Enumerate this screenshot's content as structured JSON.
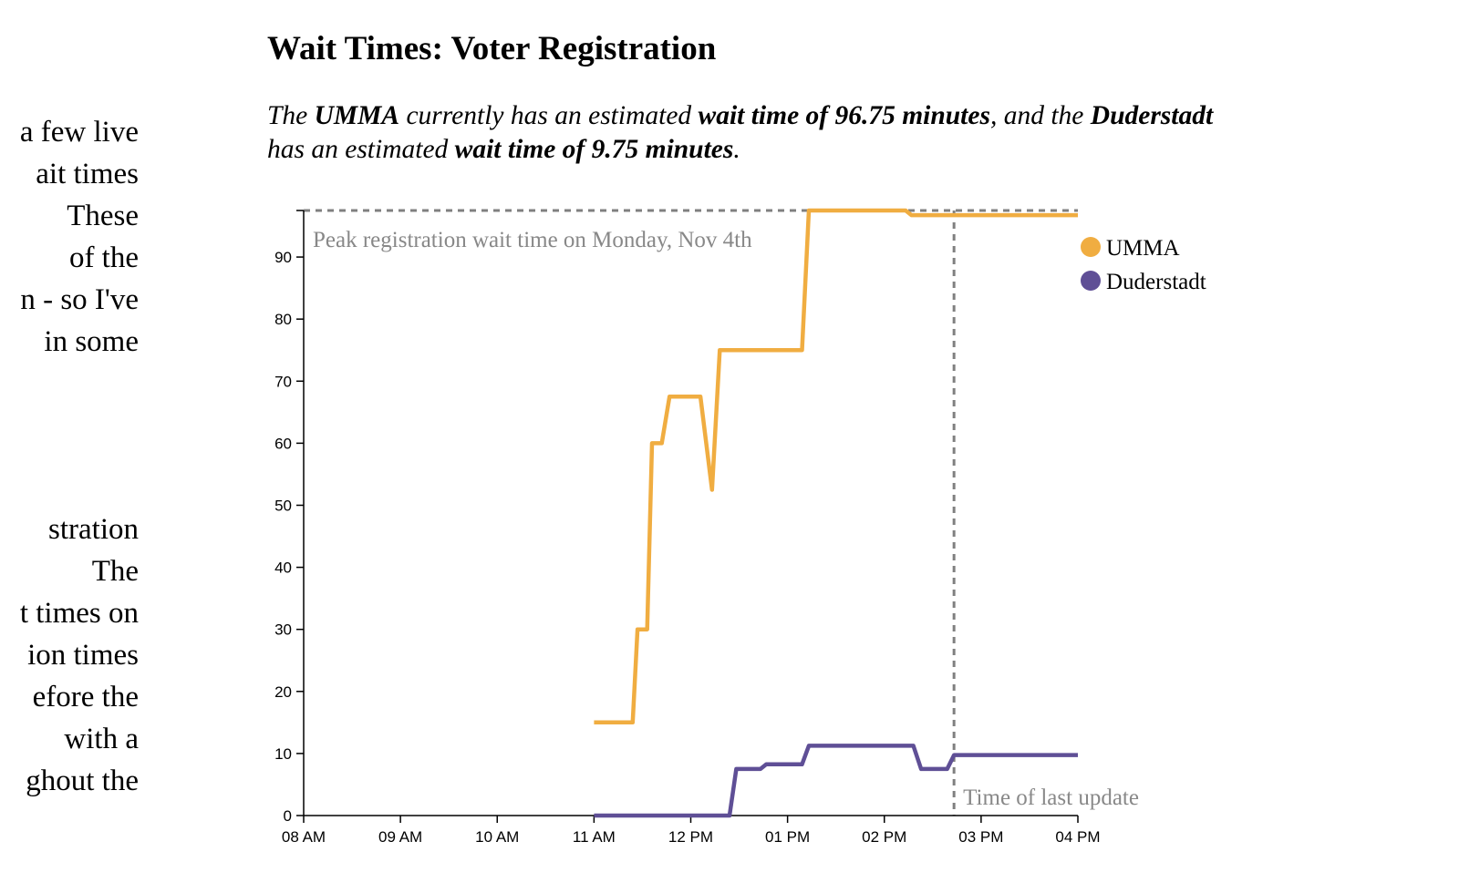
{
  "paragraphs": [
    [
      "a few live",
      "ait times",
      "These",
      "of the",
      "n - so I've",
      "in some"
    ],
    [
      "stration",
      "The",
      "t times on",
      "ion times",
      "efore the",
      " with a",
      "ghout the"
    ]
  ],
  "subtitle": {
    "parts": [
      {
        "text": "The ",
        "bold": false
      },
      {
        "text": "UMMA",
        "bold": true
      },
      {
        "text": " currently has an estimated ",
        "bold": false
      },
      {
        "text": "wait time of 96.75 minutes",
        "bold": true
      },
      {
        "text": ", and the ",
        "bold": false
      },
      {
        "text": "Duderstadt",
        "bold": true
      },
      {
        "text": " has an estimated ",
        "bold": false
      },
      {
        "text": "wait time of 9.75 minutes",
        "bold": true
      },
      {
        "text": ".",
        "bold": false
      }
    ]
  },
  "chart_data": {
    "type": "line",
    "title": "Wait Times: Voter Registration",
    "xlabel": "",
    "ylabel": "",
    "x_domain": [
      8,
      16
    ],
    "x_ticks": [
      {
        "x": 8,
        "label": "08 AM"
      },
      {
        "x": 9,
        "label": "09 AM"
      },
      {
        "x": 10,
        "label": "10 AM"
      },
      {
        "x": 11,
        "label": "11 AM"
      },
      {
        "x": 12,
        "label": "12 PM"
      },
      {
        "x": 13,
        "label": "01 PM"
      },
      {
        "x": 14,
        "label": "02 PM"
      },
      {
        "x": 15,
        "label": "03 PM"
      },
      {
        "x": 16,
        "label": "04 PM"
      }
    ],
    "ylim": [
      0,
      97.5
    ],
    "y_ticks": [
      0,
      10,
      20,
      30,
      40,
      50,
      60,
      70,
      80,
      90
    ],
    "grid": false,
    "legend_position": "top-right",
    "series": [
      {
        "name": "UMMA",
        "color": "#f0ad41",
        "points": [
          [
            11.0,
            15
          ],
          [
            11.4,
            15
          ],
          [
            11.45,
            30
          ],
          [
            11.55,
            30
          ],
          [
            11.6,
            60
          ],
          [
            11.7,
            60
          ],
          [
            11.78,
            67.5
          ],
          [
            12.1,
            67.5
          ],
          [
            12.22,
            52.5
          ],
          [
            12.3,
            75
          ],
          [
            13.15,
            75
          ],
          [
            13.22,
            97.5
          ],
          [
            14.22,
            97.5
          ],
          [
            14.28,
            96.75
          ],
          [
            16.0,
            96.75
          ]
        ]
      },
      {
        "name": "Duderstadt",
        "color": "#5f4f96",
        "points": [
          [
            11.0,
            0
          ],
          [
            12.4,
            0
          ],
          [
            12.47,
            7.5
          ],
          [
            12.72,
            7.5
          ],
          [
            12.78,
            8.25
          ],
          [
            13.15,
            8.25
          ],
          [
            13.22,
            11.25
          ],
          [
            14.3,
            11.25
          ],
          [
            14.38,
            7.5
          ],
          [
            14.65,
            7.5
          ],
          [
            14.72,
            9.75
          ],
          [
            16.0,
            9.75
          ]
        ]
      }
    ],
    "annotations": {
      "peak_value": 97.5,
      "peak_label": "Peak registration wait time on Monday, Nov 4th",
      "last_update_x": 14.72,
      "last_update_label": "Time of last update"
    }
  }
}
